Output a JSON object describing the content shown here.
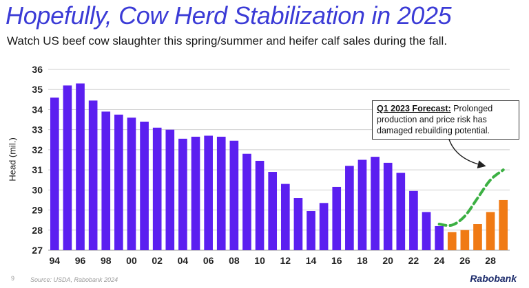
{
  "title": "Hopefully, Cow Herd Stabilization in 2025",
  "subtitle": "Watch US beef cow slaughter this spring/summer and heifer calf sales during the fall.",
  "page_number": "9",
  "source": "Source: USDA, Rabobank 2024",
  "logo": "Rabobank",
  "annotation": {
    "bold": "Q1 2023 Forecast:",
    "text": " Prolonged production and price risk has damaged rebuilding potential."
  },
  "colors": {
    "actual": "#5b1ff0",
    "forecast": "#f07a14",
    "forecast_line": "#3cb043",
    "title": "#3b3bd6"
  },
  "chart_data": {
    "type": "bar",
    "title": "Hopefully, Cow Herd Stabilization in 2025",
    "ylabel": "Head (mil.)",
    "xlabel": "",
    "ylim": [
      27,
      36
    ],
    "yticks": [
      27,
      28,
      29,
      30,
      31,
      32,
      33,
      34,
      35,
      36
    ],
    "grid": true,
    "categories": [
      "94",
      "95",
      "96",
      "97",
      "98",
      "99",
      "00",
      "01",
      "02",
      "03",
      "04",
      "05",
      "06",
      "07",
      "08",
      "09",
      "10",
      "11",
      "12",
      "13",
      "14",
      "15",
      "16",
      "17",
      "18",
      "19",
      "20",
      "21",
      "22",
      "23",
      "24",
      "25",
      "26",
      "27",
      "28",
      "29"
    ],
    "xtick_labels": [
      "94",
      "96",
      "98",
      "00",
      "02",
      "04",
      "06",
      "08",
      "10",
      "12",
      "14",
      "16",
      "18",
      "20",
      "22",
      "24",
      "26",
      "28"
    ],
    "series": [
      {
        "name": "",
        "color": "#5b1ff0",
        "values": [
          34.6,
          35.2,
          35.3,
          34.45,
          33.9,
          33.75,
          33.6,
          33.4,
          33.1,
          33.0,
          32.55,
          32.65,
          32.7,
          32.65,
          32.45,
          31.8,
          31.45,
          30.9,
          30.3,
          29.6,
          28.95,
          29.35,
          30.15,
          31.2,
          31.5,
          31.65,
          31.35,
          30.85,
          29.95,
          28.9,
          28.2,
          null,
          null,
          null,
          null,
          null
        ]
      },
      {
        "name": "",
        "color": "#f07a14",
        "values": [
          null,
          null,
          null,
          null,
          null,
          null,
          null,
          null,
          null,
          null,
          null,
          null,
          null,
          null,
          null,
          null,
          null,
          null,
          null,
          null,
          null,
          null,
          null,
          null,
          null,
          null,
          null,
          null,
          null,
          null,
          null,
          27.9,
          28.0,
          28.3,
          28.9,
          29.5
        ]
      },
      {
        "name": "",
        "type": "line",
        "style": "dashed",
        "color": "#3cb043",
        "x": [
          "24",
          "25",
          "26",
          "27",
          "28",
          "29"
        ],
        "values": [
          28.3,
          28.25,
          28.7,
          29.6,
          30.5,
          31.0
        ]
      }
    ]
  }
}
